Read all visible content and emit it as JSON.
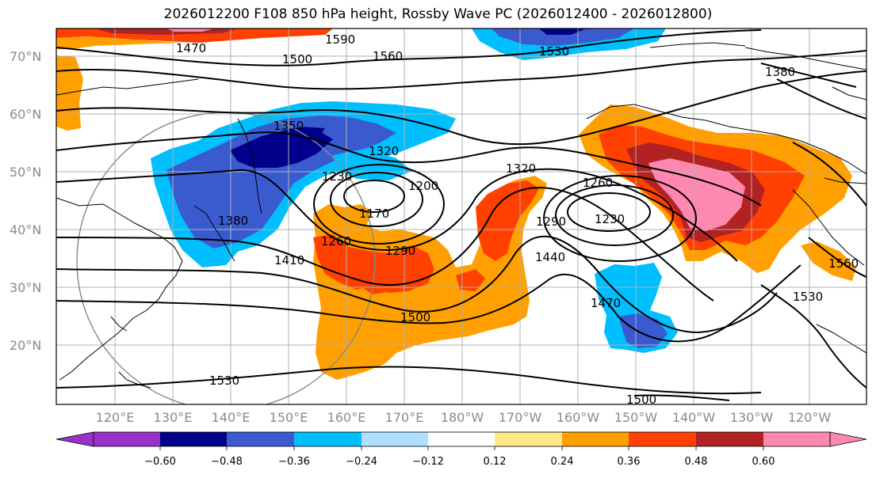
{
  "title": "2026012200 F108 850 hPa height, Rossby Wave PC (2026012400 - 2026012800)",
  "lat_labels": [
    "70°N",
    "60°N",
    "50°N",
    "40°N",
    "30°N",
    "20°N"
  ],
  "lon_labels": [
    "120°E",
    "130°E",
    "140°E",
    "150°E",
    "160°E",
    "170°E",
    "180°W",
    "170°W",
    "160°W",
    "150°W",
    "140°W",
    "130°W",
    "120°W"
  ],
  "contour_labels": [
    "1470",
    "1590",
    "1560",
    "1500",
    "1530",
    "1380",
    "1350",
    "1320",
    "1320",
    "1260",
    "1230",
    "1200",
    "1170",
    "1230",
    "1380",
    "1260",
    "1290",
    "1290",
    "1410",
    "1440",
    "1470",
    "1500",
    "1530",
    "1560",
    "1530",
    "1500"
  ],
  "colorbar": {
    "ticks": [
      "−0.60",
      "−0.48",
      "−0.36",
      "−0.24",
      "−0.12",
      "0.12",
      "0.24",
      "0.36",
      "0.48",
      "0.60"
    ],
    "colors": [
      "#9932cc",
      "#00008b",
      "#3a5bd0",
      "#00bfff",
      "#b0e0ff",
      "#ffffff",
      "#ffe987",
      "#ffa000",
      "#ff4000",
      "#b22222",
      "#ff88b0",
      "#ff88b0"
    ]
  }
}
